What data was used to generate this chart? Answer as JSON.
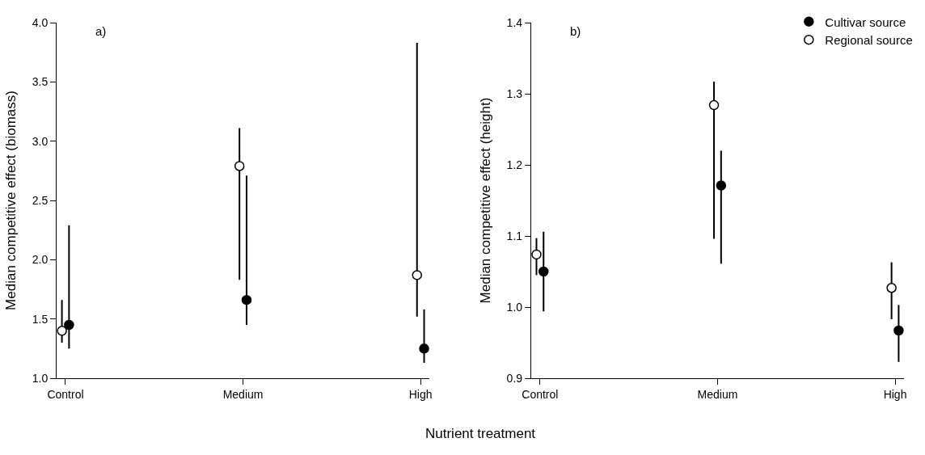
{
  "chart_data": [
    {
      "type": "scatter",
      "categories": [
        "Control",
        "Medium",
        "High"
      ],
      "ylabel": "Median competitive effect (biomass)",
      "xlabel": "Nutrient treatment",
      "annotations": [
        "a)"
      ],
      "marker": "circle",
      "grid": false,
      "legend": false,
      "ylim": [
        1.0,
        4.0
      ],
      "yticks": [
        {
          "value": 1.0,
          "label": "1.0"
        },
        1.5,
        {
          "value": 2.0,
          "label": "2.0"
        },
        2.5,
        {
          "value": 3.0,
          "label": "3.0"
        },
        3.5,
        {
          "value": 4.0,
          "label": "4.0"
        }
      ],
      "series": [
        {
          "color": "#ffffff",
          "values": [
            1.4,
            2.79,
            1.87
          ],
          "errors": [
            [
              1.3,
              1.66
            ],
            [
              1.83,
              3.11
            ],
            [
              1.52,
              3.83
            ]
          ]
        },
        {
          "color": "#000000",
          "values": [
            1.45,
            1.66,
            1.25
          ],
          "errors": [
            [
              1.25,
              2.29
            ],
            [
              1.45,
              2.71
            ],
            [
              1.13,
              1.58
            ]
          ]
        }
      ]
    },
    {
      "type": "scatter",
      "categories": [
        "Control",
        "Medium",
        "High"
      ],
      "ylabel": "Median competitive effect (height)",
      "annotations": [
        "b)"
      ],
      "marker": "circle",
      "grid": false,
      "legend": "top right",
      "ylim": [
        0.9,
        1.4
      ],
      "yticks": [
        0.9,
        {
          "value": 1.0,
          "label": "1.0"
        },
        1.1,
        1.2,
        1.3,
        1.4
      ],
      "series": [
        {
          "name": "Regional source",
          "color": "#ffffff",
          "values": [
            1.074,
            1.284,
            1.027
          ],
          "errors": [
            [
              1.045,
              1.097
            ],
            [
              1.096,
              1.317
            ],
            [
              0.983,
              1.063
            ]
          ]
        },
        {
          "name": "Cultivar source",
          "color": "#000000",
          "values": [
            1.05,
            1.171,
            0.967
          ],
          "errors": [
            [
              0.994,
              1.106
            ],
            [
              1.061,
              1.22
            ],
            [
              0.923,
              1.003
            ]
          ]
        }
      ]
    }
  ]
}
